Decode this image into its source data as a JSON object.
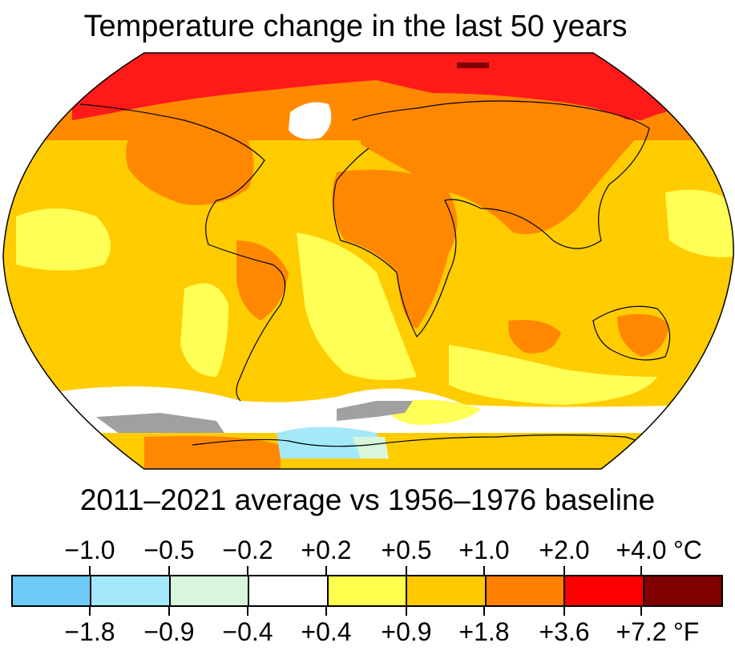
{
  "title": "Temperature change in the last 50 years",
  "subtitle": "2011–2021 average vs 1956–1976 baseline",
  "legend": {
    "celsius_ticks": [
      "−1.0",
      "−0.5",
      "−0.2",
      "+0.2",
      "+0.5",
      "+1.0",
      "+2.0",
      "+4.0"
    ],
    "celsius_unit": "°C",
    "fahrenheit_ticks": [
      "−1.8",
      "−0.9",
      "−0.4",
      "+0.4",
      "+0.9",
      "+1.8",
      "+3.6",
      "+7.2"
    ],
    "fahrenheit_unit": "°F",
    "colors": [
      "#6ec9f7",
      "#a3e8fb",
      "#d8f6dc",
      "#ffffff",
      "#ffff4d",
      "#ffc800",
      "#ff8000",
      "#ff0000",
      "#800000"
    ]
  },
  "map_colors": {
    "arctic": "#ff1a1a",
    "high_latitude": "#ff8a00",
    "ocean_base": "#ffcc00",
    "warm_land": "#ff8800",
    "mild_ocean": "#ffff55",
    "southern_ocean": "#ffffff",
    "cooling": "#a3e8fb",
    "no_data": "#a0a0a0",
    "darkest": "#800000"
  }
}
